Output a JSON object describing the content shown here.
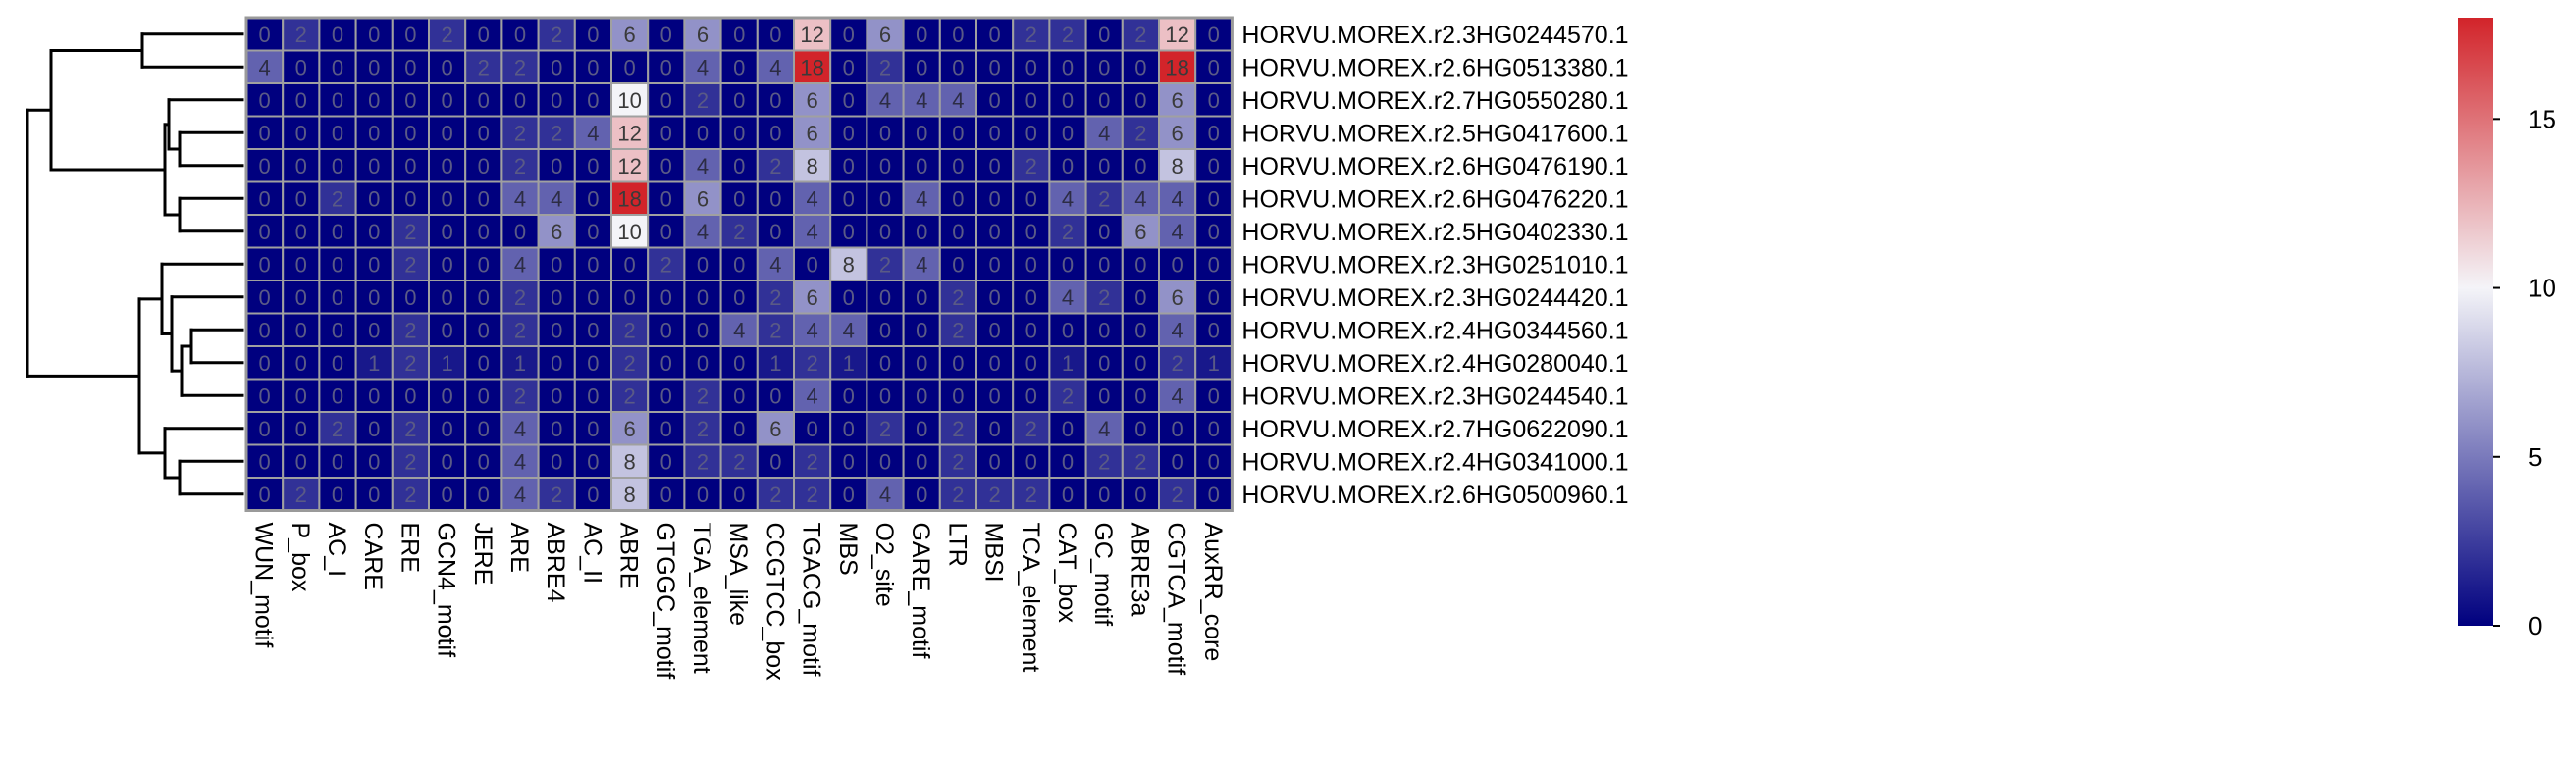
{
  "chart_data": {
    "type": "heatmap",
    "title": "",
    "columns": [
      "WUN_motif",
      "P_box",
      "AC_I",
      "CARE",
      "ERE",
      "GCN4_motif",
      "JERE",
      "ARE",
      "ABRE4",
      "AC_II",
      "ABRE",
      "GTGGC_motif",
      "TGA_element",
      "MSA_like",
      "CCGTCC_box",
      "TGACG_motif",
      "MBS",
      "O2_site",
      "GARE_motif",
      "LTR",
      "MBSI",
      "TCA_element",
      "CAT_box",
      "GC_motif",
      "ABRE3a",
      "CGTCA_motif",
      "AuxRR_core"
    ],
    "rows": [
      "HORVU.MOREX.r2.3HG0244570.1",
      "HORVU.MOREX.r2.6HG0513380.1",
      "HORVU.MOREX.r2.7HG0550280.1",
      "HORVU.MOREX.r2.5HG0417600.1",
      "HORVU.MOREX.r2.6HG0476190.1",
      "HORVU.MOREX.r2.6HG0476220.1",
      "HORVU.MOREX.r2.5HG0402330.1",
      "HORVU.MOREX.r2.3HG0251010.1",
      "HORVU.MOREX.r2.3HG0244420.1",
      "HORVU.MOREX.r2.4HG0344560.1",
      "HORVU.MOREX.r2.4HG0280040.1",
      "HORVU.MOREX.r2.3HG0244540.1",
      "HORVU.MOREX.r2.7HG0622090.1",
      "HORVU.MOREX.r2.4HG0341000.1",
      "HORVU.MOREX.r2.6HG0500960.1"
    ],
    "values": [
      [
        0,
        2,
        0,
        0,
        0,
        2,
        0,
        0,
        2,
        0,
        6,
        0,
        6,
        0,
        0,
        12,
        0,
        6,
        0,
        0,
        0,
        2,
        2,
        0,
        2,
        12,
        0
      ],
      [
        4,
        0,
        0,
        0,
        0,
        0,
        2,
        2,
        0,
        0,
        0,
        0,
        4,
        0,
        4,
        18,
        0,
        2,
        0,
        0,
        0,
        0,
        0,
        0,
        0,
        18,
        0
      ],
      [
        0,
        0,
        0,
        0,
        0,
        0,
        0,
        0,
        0,
        0,
        10,
        0,
        2,
        0,
        0,
        6,
        0,
        4,
        4,
        4,
        0,
        0,
        0,
        0,
        0,
        6,
        0
      ],
      [
        0,
        0,
        0,
        0,
        0,
        0,
        0,
        2,
        2,
        4,
        12,
        0,
        0,
        0,
        0,
        6,
        0,
        0,
        0,
        0,
        0,
        0,
        0,
        4,
        2,
        6,
        0
      ],
      [
        0,
        0,
        0,
        0,
        0,
        0,
        0,
        2,
        0,
        0,
        12,
        0,
        4,
        0,
        2,
        8,
        0,
        0,
        0,
        0,
        0,
        2,
        0,
        0,
        0,
        8,
        0
      ],
      [
        0,
        0,
        2,
        0,
        0,
        0,
        0,
        4,
        4,
        0,
        18,
        0,
        6,
        0,
        0,
        4,
        0,
        0,
        4,
        0,
        0,
        0,
        4,
        2,
        4,
        4,
        0
      ],
      [
        0,
        0,
        0,
        0,
        2,
        0,
        0,
        0,
        6,
        0,
        10,
        0,
        4,
        2,
        0,
        4,
        0,
        0,
        0,
        0,
        0,
        0,
        2,
        0,
        6,
        4,
        0
      ],
      [
        0,
        0,
        0,
        0,
        2,
        0,
        0,
        4,
        0,
        0,
        0,
        2,
        0,
        0,
        4,
        0,
        8,
        2,
        4,
        0,
        0,
        0,
        0,
        0,
        0,
        0,
        0
      ],
      [
        0,
        0,
        0,
        0,
        0,
        0,
        0,
        2,
        0,
        0,
        0,
        0,
        0,
        0,
        2,
        6,
        0,
        0,
        0,
        2,
        0,
        0,
        4,
        2,
        0,
        6,
        0
      ],
      [
        0,
        0,
        0,
        0,
        2,
        0,
        0,
        2,
        0,
        0,
        2,
        0,
        0,
        4,
        2,
        4,
        4,
        0,
        0,
        2,
        0,
        0,
        0,
        0,
        0,
        4,
        0
      ],
      [
        0,
        0,
        0,
        1,
        2,
        1,
        0,
        1,
        0,
        0,
        2,
        0,
        0,
        0,
        1,
        2,
        1,
        0,
        0,
        0,
        0,
        0,
        1,
        0,
        0,
        2,
        1
      ],
      [
        0,
        0,
        0,
        0,
        0,
        0,
        0,
        2,
        0,
        0,
        2,
        0,
        2,
        0,
        0,
        4,
        0,
        0,
        0,
        0,
        0,
        0,
        2,
        0,
        0,
        4,
        0
      ],
      [
        0,
        0,
        2,
        0,
        2,
        0,
        0,
        4,
        0,
        0,
        6,
        0,
        2,
        0,
        6,
        0,
        0,
        2,
        0,
        2,
        0,
        2,
        0,
        4,
        0,
        0,
        0
      ],
      [
        0,
        0,
        0,
        0,
        2,
        0,
        0,
        4,
        0,
        0,
        8,
        0,
        2,
        2,
        0,
        2,
        0,
        0,
        0,
        2,
        0,
        0,
        0,
        2,
        2,
        0,
        0
      ],
      [
        0,
        2,
        0,
        0,
        2,
        0,
        0,
        4,
        2,
        0,
        8,
        0,
        0,
        0,
        2,
        2,
        0,
        4,
        0,
        2,
        2,
        2,
        0,
        0,
        0,
        2,
        0
      ]
    ],
    "color_scale": {
      "min": 0,
      "mid": 10,
      "max": 18,
      "low_color": "#00007f",
      "mid_color": "#f4f4f8",
      "high_color": "#d2242a",
      "ticks": [
        0,
        5,
        10,
        15
      ]
    },
    "cell_border_color": "#a0a0a0",
    "row_dendrogram": true,
    "legend_position": "right"
  }
}
